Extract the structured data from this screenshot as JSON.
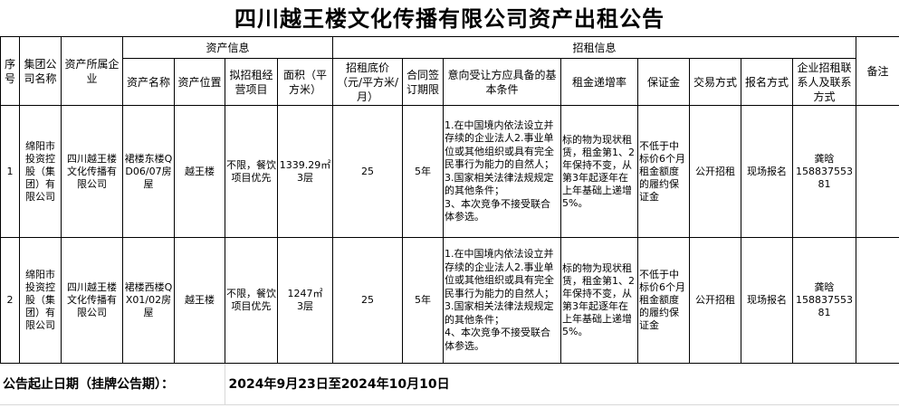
{
  "title": "四川越王楼文化传播有限公司资产出租公告",
  "headers": {
    "seq": "序号",
    "group": "集团公司名称",
    "owner": "资产所属企业",
    "asset_info": "资产信息",
    "rent_info": "招租信息",
    "asset_name": "资产名称",
    "asset_location": "资产位置",
    "business": "拟招租经营项目",
    "area": "面积（平方米）",
    "price": "招租底价（元/平方米/月）",
    "term": "合同签订期限",
    "conditions": "意向受让方应具备的基本条件",
    "increase": "租金递增率",
    "deposit": "保证金",
    "trade": "交易方式",
    "signup": "报名方式",
    "contact": "企业招租联系人及联系方式",
    "remark": "备注"
  },
  "rows": [
    {
      "seq": "1",
      "group": "绵阳市投资控股（集团）有限公司",
      "owner": "四川越王楼文化传播有限公司",
      "asset_name": "裙楼东楼QD06/07房屋",
      "asset_location": "越王楼",
      "business": "不限，餐饮项目优先",
      "area": "1339.29㎡",
      "floor": "3层",
      "price": "25",
      "term": "5年",
      "conditions": [
        "1.在中国境内依法设立并存续的企业法人2.事业单位或其他组织或具有完全民事行为能力的自然人；",
        "3.国家相关法律法规规定的其他条件；",
        "3、本次竞争不接受联合体参选。"
      ],
      "increase": "标的物为现状租赁，租金第1、2年保持不变，从第3年起逐年在上年基础上递增5%。",
      "deposit": "不低于中标价6个月租金额度的履约保证金",
      "trade": "公开招租",
      "signup": "现场报名",
      "contact_name": "龚晗",
      "contact_phone": "15883755381",
      "remark": ""
    },
    {
      "seq": "2",
      "group": "绵阳市投资控股（集团）有限公司",
      "owner": "四川越王楼文化传播有限公司",
      "asset_name": "裙楼西楼QX01/02房屋",
      "asset_location": "越王楼",
      "business": "不限，餐饮项目优先",
      "area": "1247㎡",
      "floor": "3层",
      "price": "25",
      "term": "5年",
      "conditions": [
        "1.在中国境内依法设立并存续的企业法人2.事业单位或其他组织或具有完全民事行为能力的自然人；",
        "3.国家相关法律法规规定的其他条件；",
        "4、本次竞争不接受联合体参选。"
      ],
      "increase": "标的物为现状租赁，租金第1、2年保持不变，从第3年起逐年在上年基础上递增5%。",
      "deposit": "不低于中标价6个月租金额度的履约保证金",
      "trade": "公开招租",
      "signup": "现场报名",
      "contact_name": "龚晗",
      "contact_phone": "15883755381",
      "remark": ""
    }
  ],
  "footer": {
    "label": "公告起止日期（挂牌公告期）：",
    "value": "2024年9月23日至2024年10月10日"
  }
}
